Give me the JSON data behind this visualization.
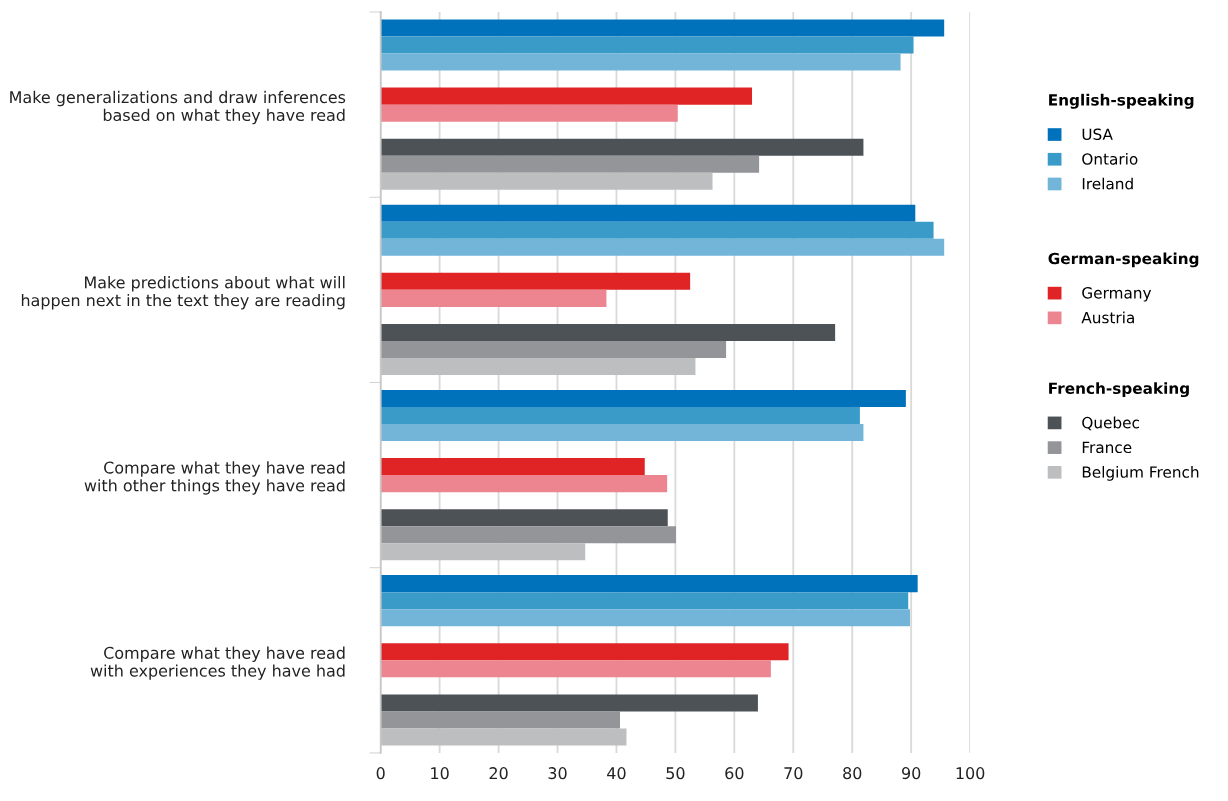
{
  "chart_data": {
    "type": "bar",
    "orientation": "horizontal",
    "categories": [
      "Make generalizations and draw inferences\nbased on what they have read",
      "Make predictions about what will\nhappen next in the text they are reading",
      "Compare what they have read\nwith other things they have read",
      "Compare what they have read\nwith experiences they have had"
    ],
    "legend_title": [
      "English-speaking",
      "German-speaking",
      "French-speaking"
    ],
    "series": [
      {
        "name": "USA",
        "color": "#0072bc",
        "values": [
          95.6,
          90.7,
          89.1,
          91.1
        ]
      },
      {
        "name": "Ontario",
        "color": "#3a9bc9",
        "values": [
          90.4,
          93.8,
          81.3,
          89.5
        ]
      },
      {
        "name": "Ireland",
        "color": "#72b5d8",
        "values": [
          88.2,
          95.6,
          81.9,
          89.8
        ]
      },
      {
        "name": "Germany",
        "color": "#e02426",
        "values": [
          63.0,
          52.5,
          44.8,
          69.2
        ]
      },
      {
        "name": "Austria",
        "color": "#ec8590",
        "values": [
          50.4,
          38.3,
          48.6,
          66.2
        ]
      },
      {
        "name": "Quebec",
        "color": "#4d5257",
        "values": [
          81.9,
          77.1,
          48.7,
          64.0
        ]
      },
      {
        "name": "France",
        "color": "#939598",
        "values": [
          64.2,
          58.6,
          50.1,
          40.6
        ]
      },
      {
        "name": "Belgium French",
        "color": "#bcbec0",
        "values": [
          56.3,
          53.4,
          34.7,
          41.7
        ]
      }
    ],
    "xlim": [
      0,
      100
    ],
    "xticks": [
      0,
      10,
      20,
      30,
      40,
      50,
      60,
      70,
      80,
      90,
      100
    ],
    "grid": "x",
    "legend": "right"
  }
}
